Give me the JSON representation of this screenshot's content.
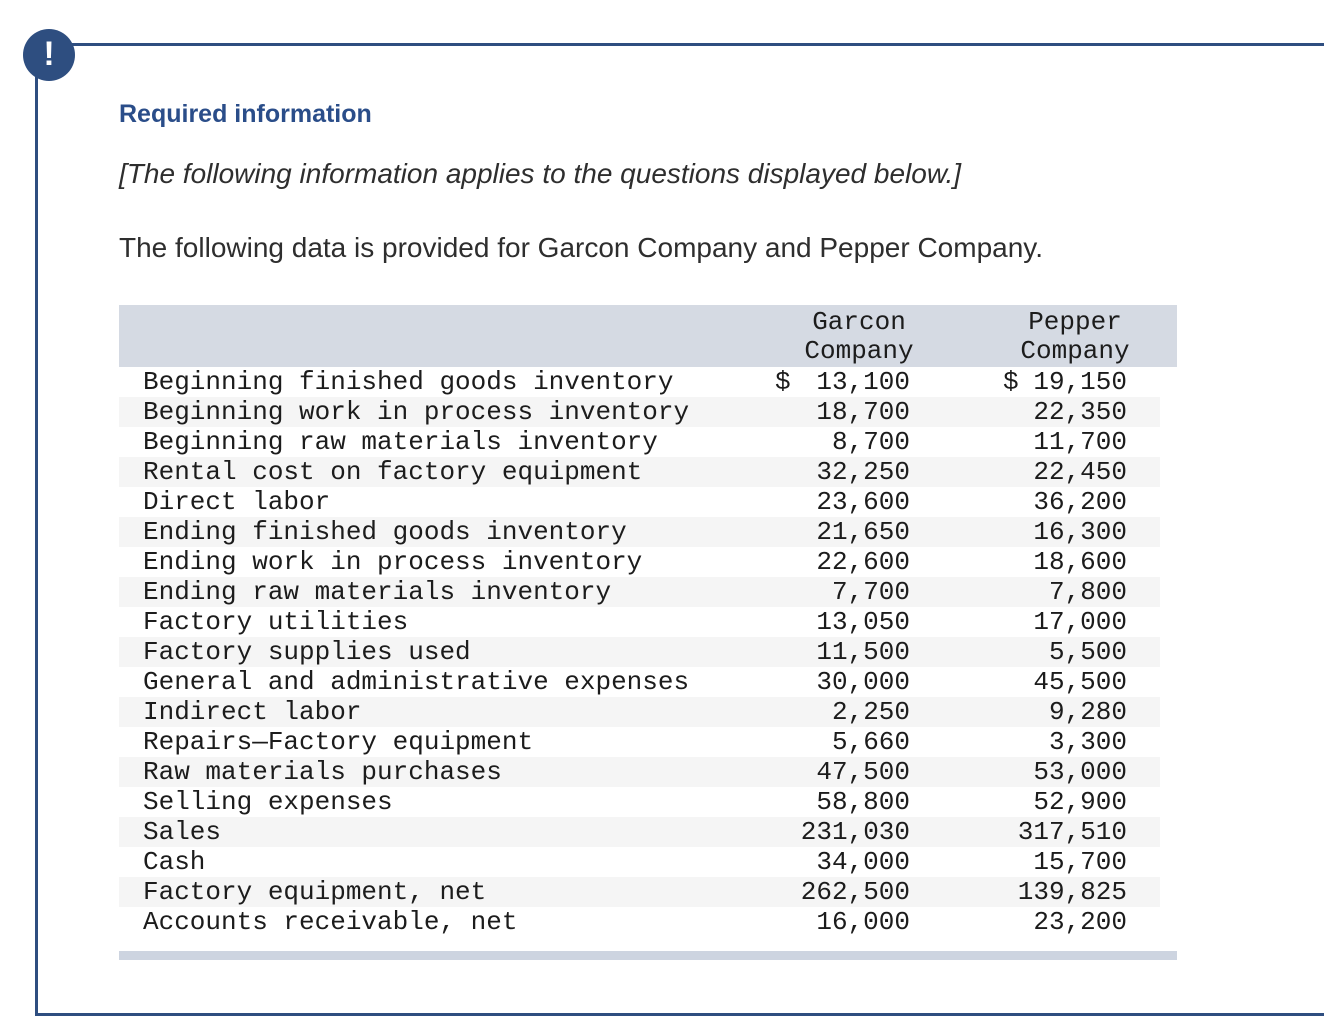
{
  "alert": {
    "icon": "!"
  },
  "header": {
    "title": "Required information"
  },
  "intro": {
    "applies_note": "[The following information applies to the questions displayed below.]",
    "description": "The following data is provided for Garcon Company and Pepper Company."
  },
  "colors": {
    "panel_border": "#2e4e80",
    "title_blue": "#2a4d89",
    "table_header_band": "#d5dae3",
    "table_footer_band": "#cdd4e0",
    "row_stripe": "#f5f5f5"
  },
  "table": {
    "columns": [
      {
        "line1": "Garcon",
        "line2": "Company"
      },
      {
        "line1": "Pepper",
        "line2": "Company"
      }
    ],
    "rows": [
      {
        "label": "Beginning finished goods inventory",
        "garcon_prefix": "$",
        "garcon": "13,100",
        "pepper_prefix": "$",
        "pepper": "19,150"
      },
      {
        "label": "Beginning work in process inventory",
        "garcon": "18,700",
        "pepper": "22,350"
      },
      {
        "label": "Beginning raw materials inventory",
        "garcon": "8,700",
        "pepper": "11,700"
      },
      {
        "label": "Rental cost on factory equipment",
        "garcon": "32,250",
        "pepper": "22,450"
      },
      {
        "label": "Direct labor",
        "garcon": "23,600",
        "pepper": "36,200"
      },
      {
        "label": "Ending finished goods inventory",
        "garcon": "21,650",
        "pepper": "16,300"
      },
      {
        "label": "Ending work in process inventory",
        "garcon": "22,600",
        "pepper": "18,600"
      },
      {
        "label": "Ending raw materials inventory",
        "garcon": "7,700",
        "pepper": "7,800"
      },
      {
        "label": "Factory utilities",
        "garcon": "13,050",
        "pepper": "17,000"
      },
      {
        "label": "Factory supplies used",
        "garcon": "11,500",
        "pepper": "5,500"
      },
      {
        "label": "General and administrative expenses",
        "garcon": "30,000",
        "pepper": "45,500"
      },
      {
        "label": "Indirect labor",
        "garcon": "2,250",
        "pepper": "9,280"
      },
      {
        "label": "Repairs—Factory equipment",
        "garcon": "5,660",
        "pepper": "3,300"
      },
      {
        "label": "Raw materials purchases",
        "garcon": "47,500",
        "pepper": "53,000"
      },
      {
        "label": "Selling expenses",
        "garcon": "58,800",
        "pepper": "52,900"
      },
      {
        "label": "Sales",
        "garcon": "231,030",
        "pepper": "317,510"
      },
      {
        "label": "Cash",
        "garcon": "34,000",
        "pepper": "15,700"
      },
      {
        "label": "Factory equipment, net",
        "garcon": "262,500",
        "pepper": "139,825"
      },
      {
        "label": "Accounts receivable, net",
        "garcon": "16,000",
        "pepper": "23,200"
      }
    ]
  }
}
